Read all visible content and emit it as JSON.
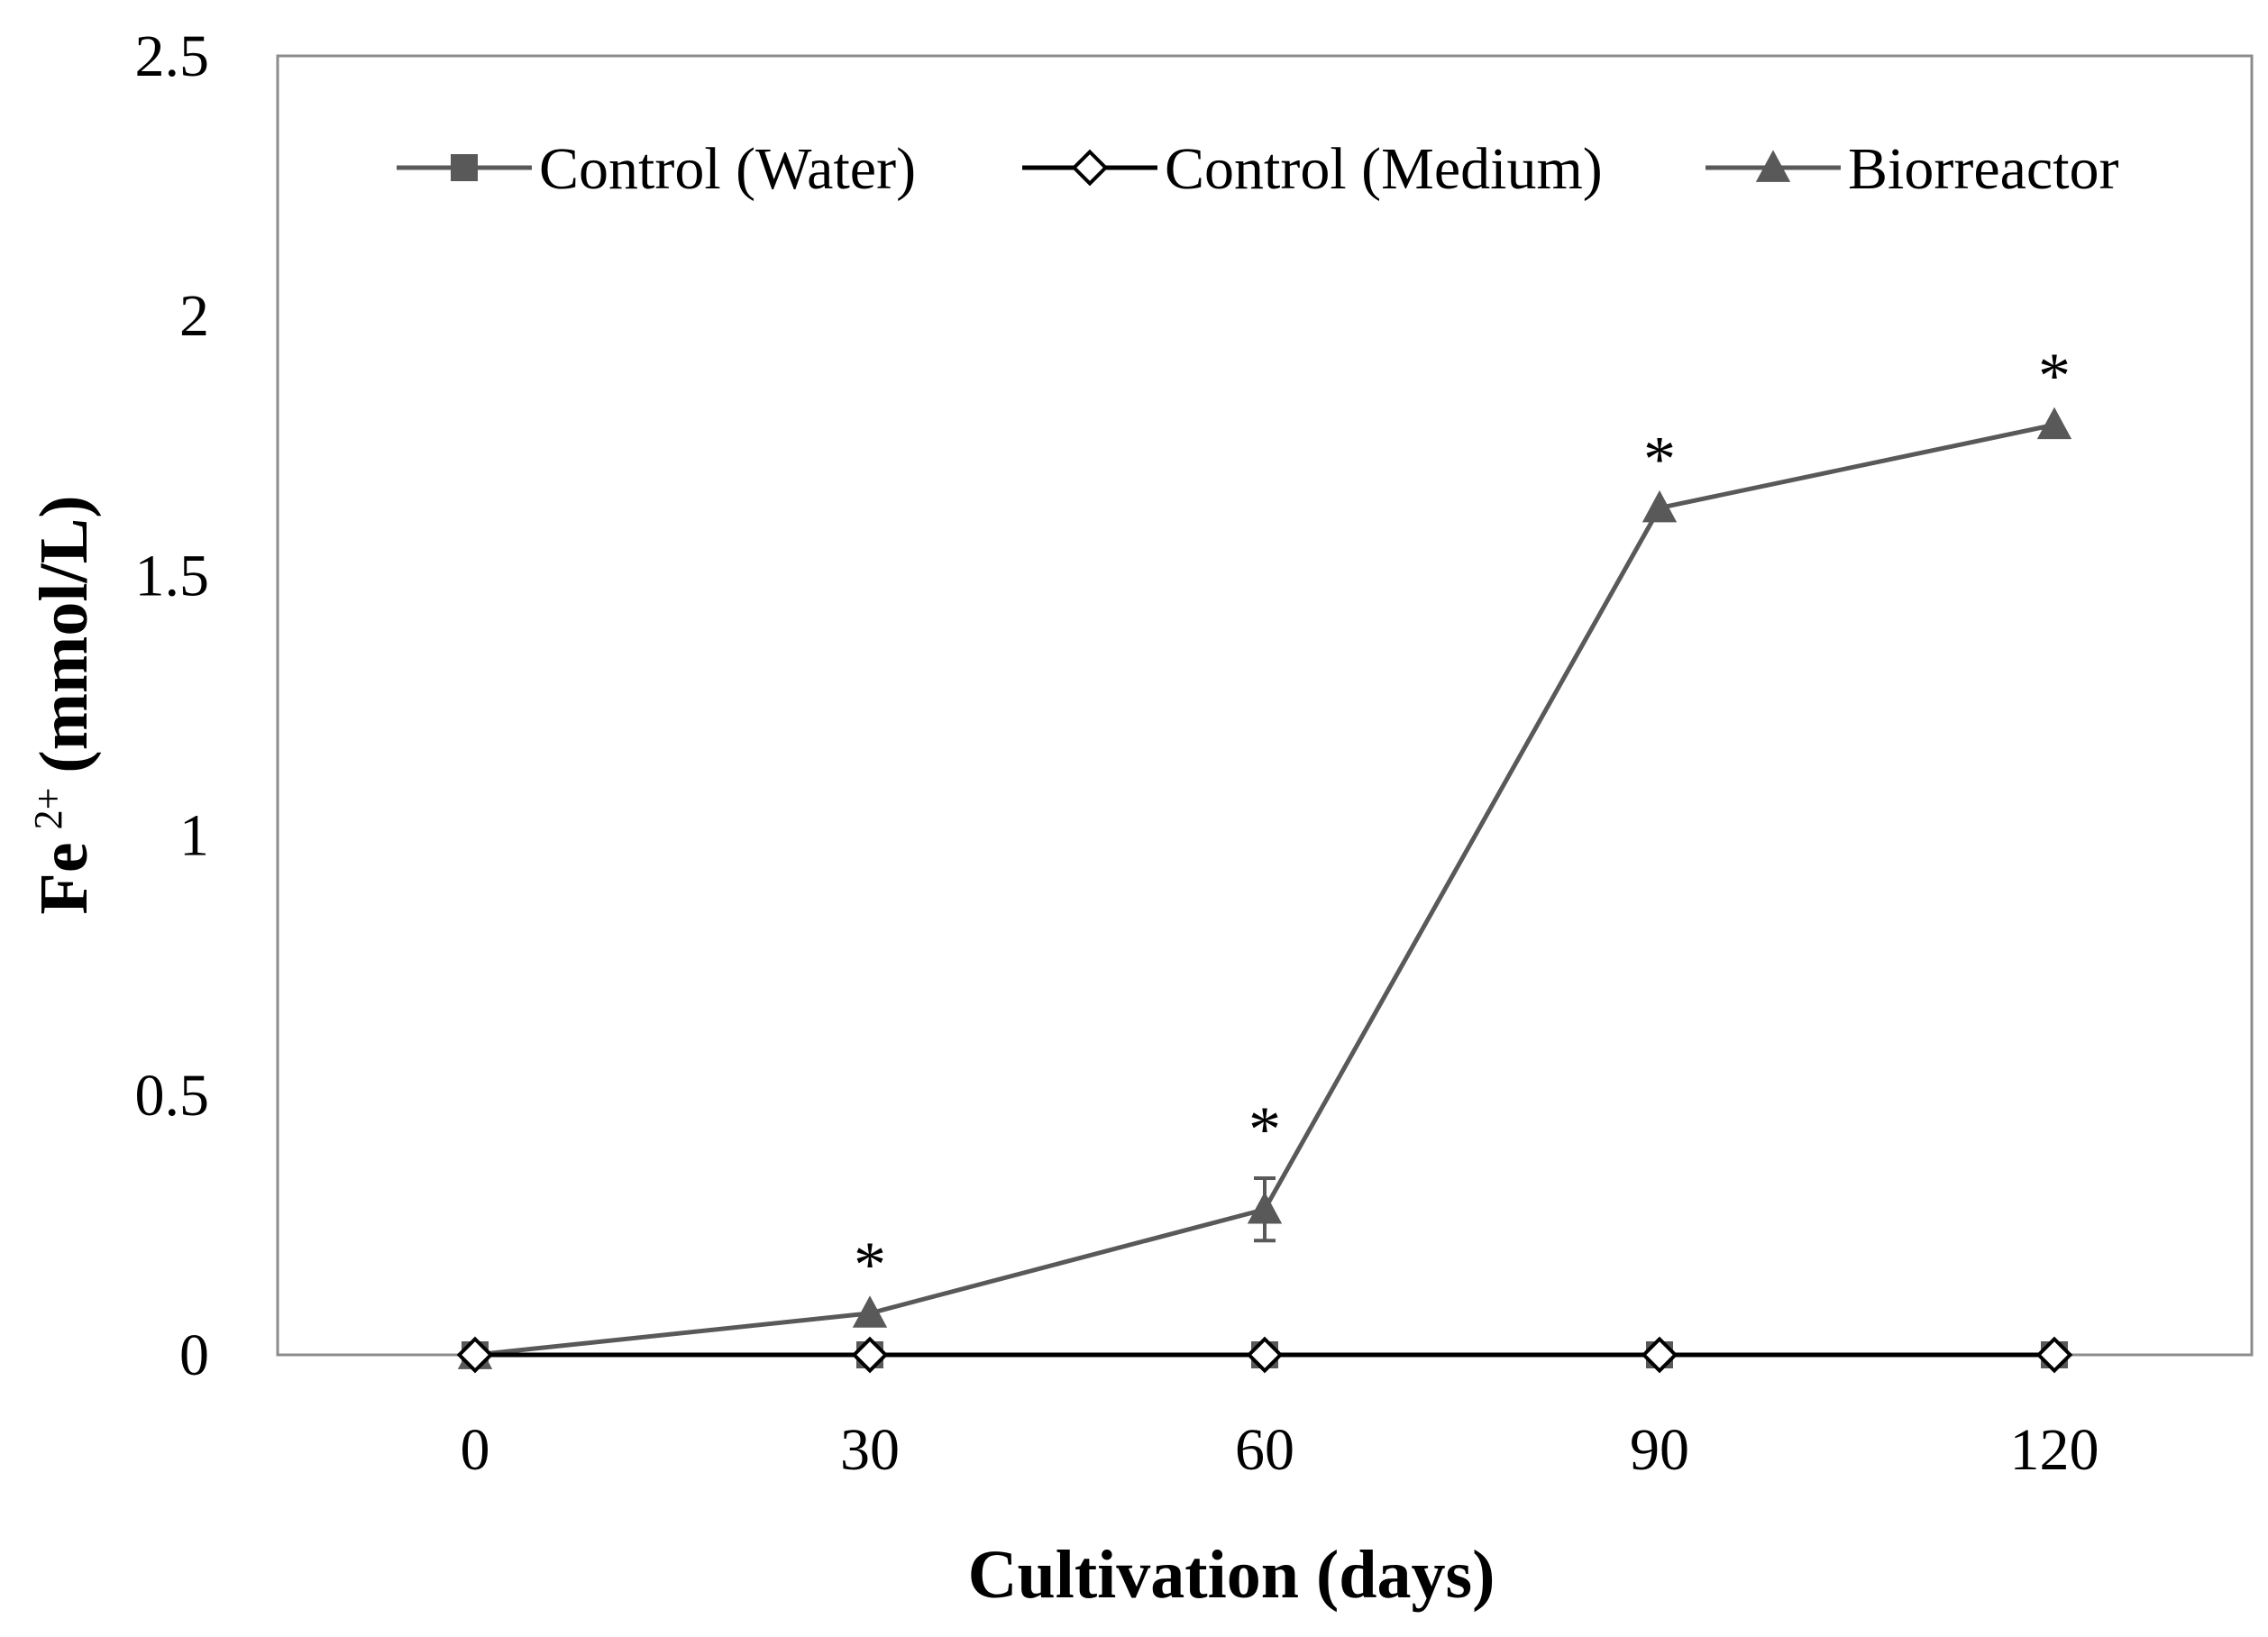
{
  "chart_data": {
    "type": "line",
    "title": "",
    "xlabel": "Cultivation (days)",
    "ylabel_main": "Fe",
    "ylabel_sup": "2+",
    "ylabel_unit": "(mmol/L)",
    "x": [
      0,
      30,
      60,
      90,
      120
    ],
    "xlim": [
      -15,
      135
    ],
    "ylim": [
      0,
      2.5
    ],
    "xticks": [
      "0",
      "30",
      "60",
      "90",
      "120"
    ],
    "yticks": [
      "0",
      "0.5",
      "1",
      "1.5",
      "2",
      "2.5"
    ],
    "grid": false,
    "legend_position": "top",
    "series": [
      {
        "name": "Control (Water)",
        "marker": "square",
        "color": "#595959",
        "values": [
          0,
          0,
          0,
          0,
          0
        ],
        "errors": [
          0,
          0,
          0,
          0,
          0
        ]
      },
      {
        "name": "Control (Medium)",
        "marker": "diamond",
        "color": "#000000",
        "values": [
          0,
          0,
          0,
          0,
          0
        ],
        "errors": [
          0,
          0,
          0,
          0,
          0
        ]
      },
      {
        "name": "Biorreactor",
        "marker": "triangle",
        "color": "#595959",
        "values": [
          0,
          0.08,
          0.28,
          1.63,
          1.79
        ],
        "errors": [
          0,
          0,
          0.06,
          0,
          0
        ]
      }
    ],
    "annotations": [
      {
        "x": 30,
        "text": "*"
      },
      {
        "x": 60,
        "text": "*"
      },
      {
        "x": 90,
        "text": "*"
      },
      {
        "x": 120,
        "text": "*"
      }
    ]
  }
}
